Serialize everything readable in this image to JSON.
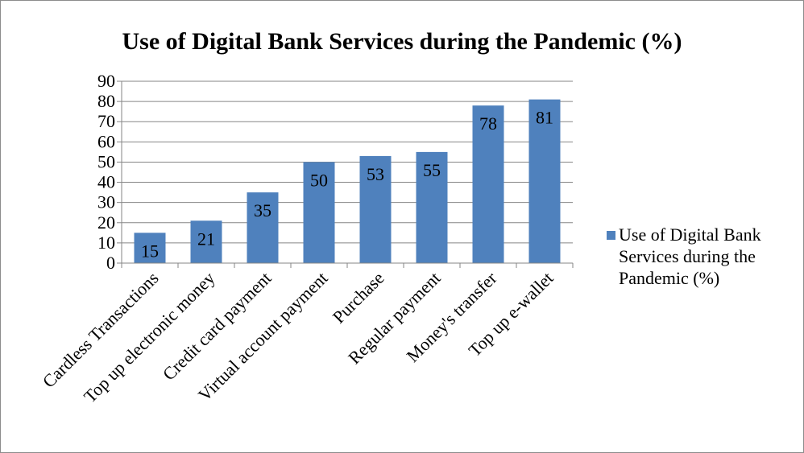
{
  "chart_data": {
    "type": "bar",
    "title": "Use of Digital Bank Services during the Pandemic (%)",
    "xlabel": "",
    "ylabel": "",
    "ylim": [
      0,
      90
    ],
    "yticks": [
      0,
      10,
      20,
      30,
      40,
      50,
      60,
      70,
      80,
      90
    ],
    "categories": [
      "Cardless Transactions",
      "Top up electronic money",
      "Credit card payment",
      "Virtual account payment",
      "Purchase",
      "Regular payment",
      "Money's transfer",
      "Top up e-wallet"
    ],
    "series": [
      {
        "name": "Use of Digital Bank Services during the Pandemic (%)",
        "values": [
          15,
          21,
          35,
          50,
          53,
          55,
          78,
          81
        ],
        "color": "#4f81bd"
      }
    ],
    "grid": "horizontal",
    "legend_position": "right",
    "legend_lines": [
      "Use of Digital Bank",
      "Services during the",
      "Pandemic (%)"
    ],
    "data_labels": true
  }
}
